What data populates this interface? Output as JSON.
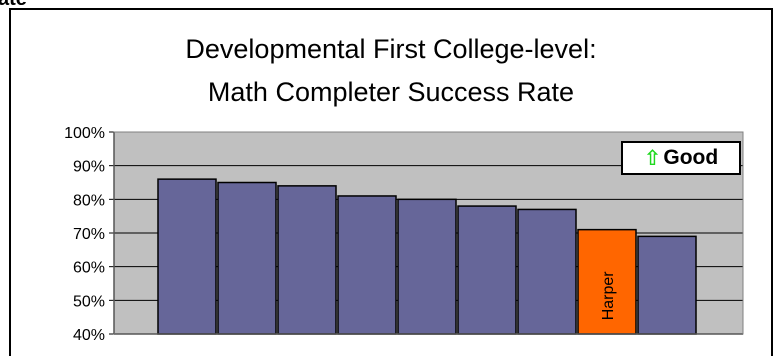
{
  "cut_label": "ate",
  "chart_data": {
    "type": "bar",
    "title": [
      "Developmental First College-level:",
      "Math Completer Success Rate"
    ],
    "y_tick_labels": [
      "100%",
      "90%",
      "80%",
      "70%",
      "60%",
      "50%",
      "40%"
    ],
    "ylim": [
      40,
      100
    ],
    "y_unit": "%",
    "grid": true,
    "values": [
      86,
      85,
      84,
      81,
      80,
      78,
      77,
      71,
      69
    ],
    "bar_labels": [
      "",
      "",
      "",
      "",
      "",
      "",
      "",
      "Harper",
      ""
    ],
    "colors": {
      "default_bar": "#666699",
      "highlight_bar": "#ff6600",
      "plot_background": "#c0c0c0",
      "good_arrow": "#1fd81f"
    },
    "highlight_index": 7,
    "annotation": {
      "arrow": "⇧",
      "text": "Good"
    }
  }
}
